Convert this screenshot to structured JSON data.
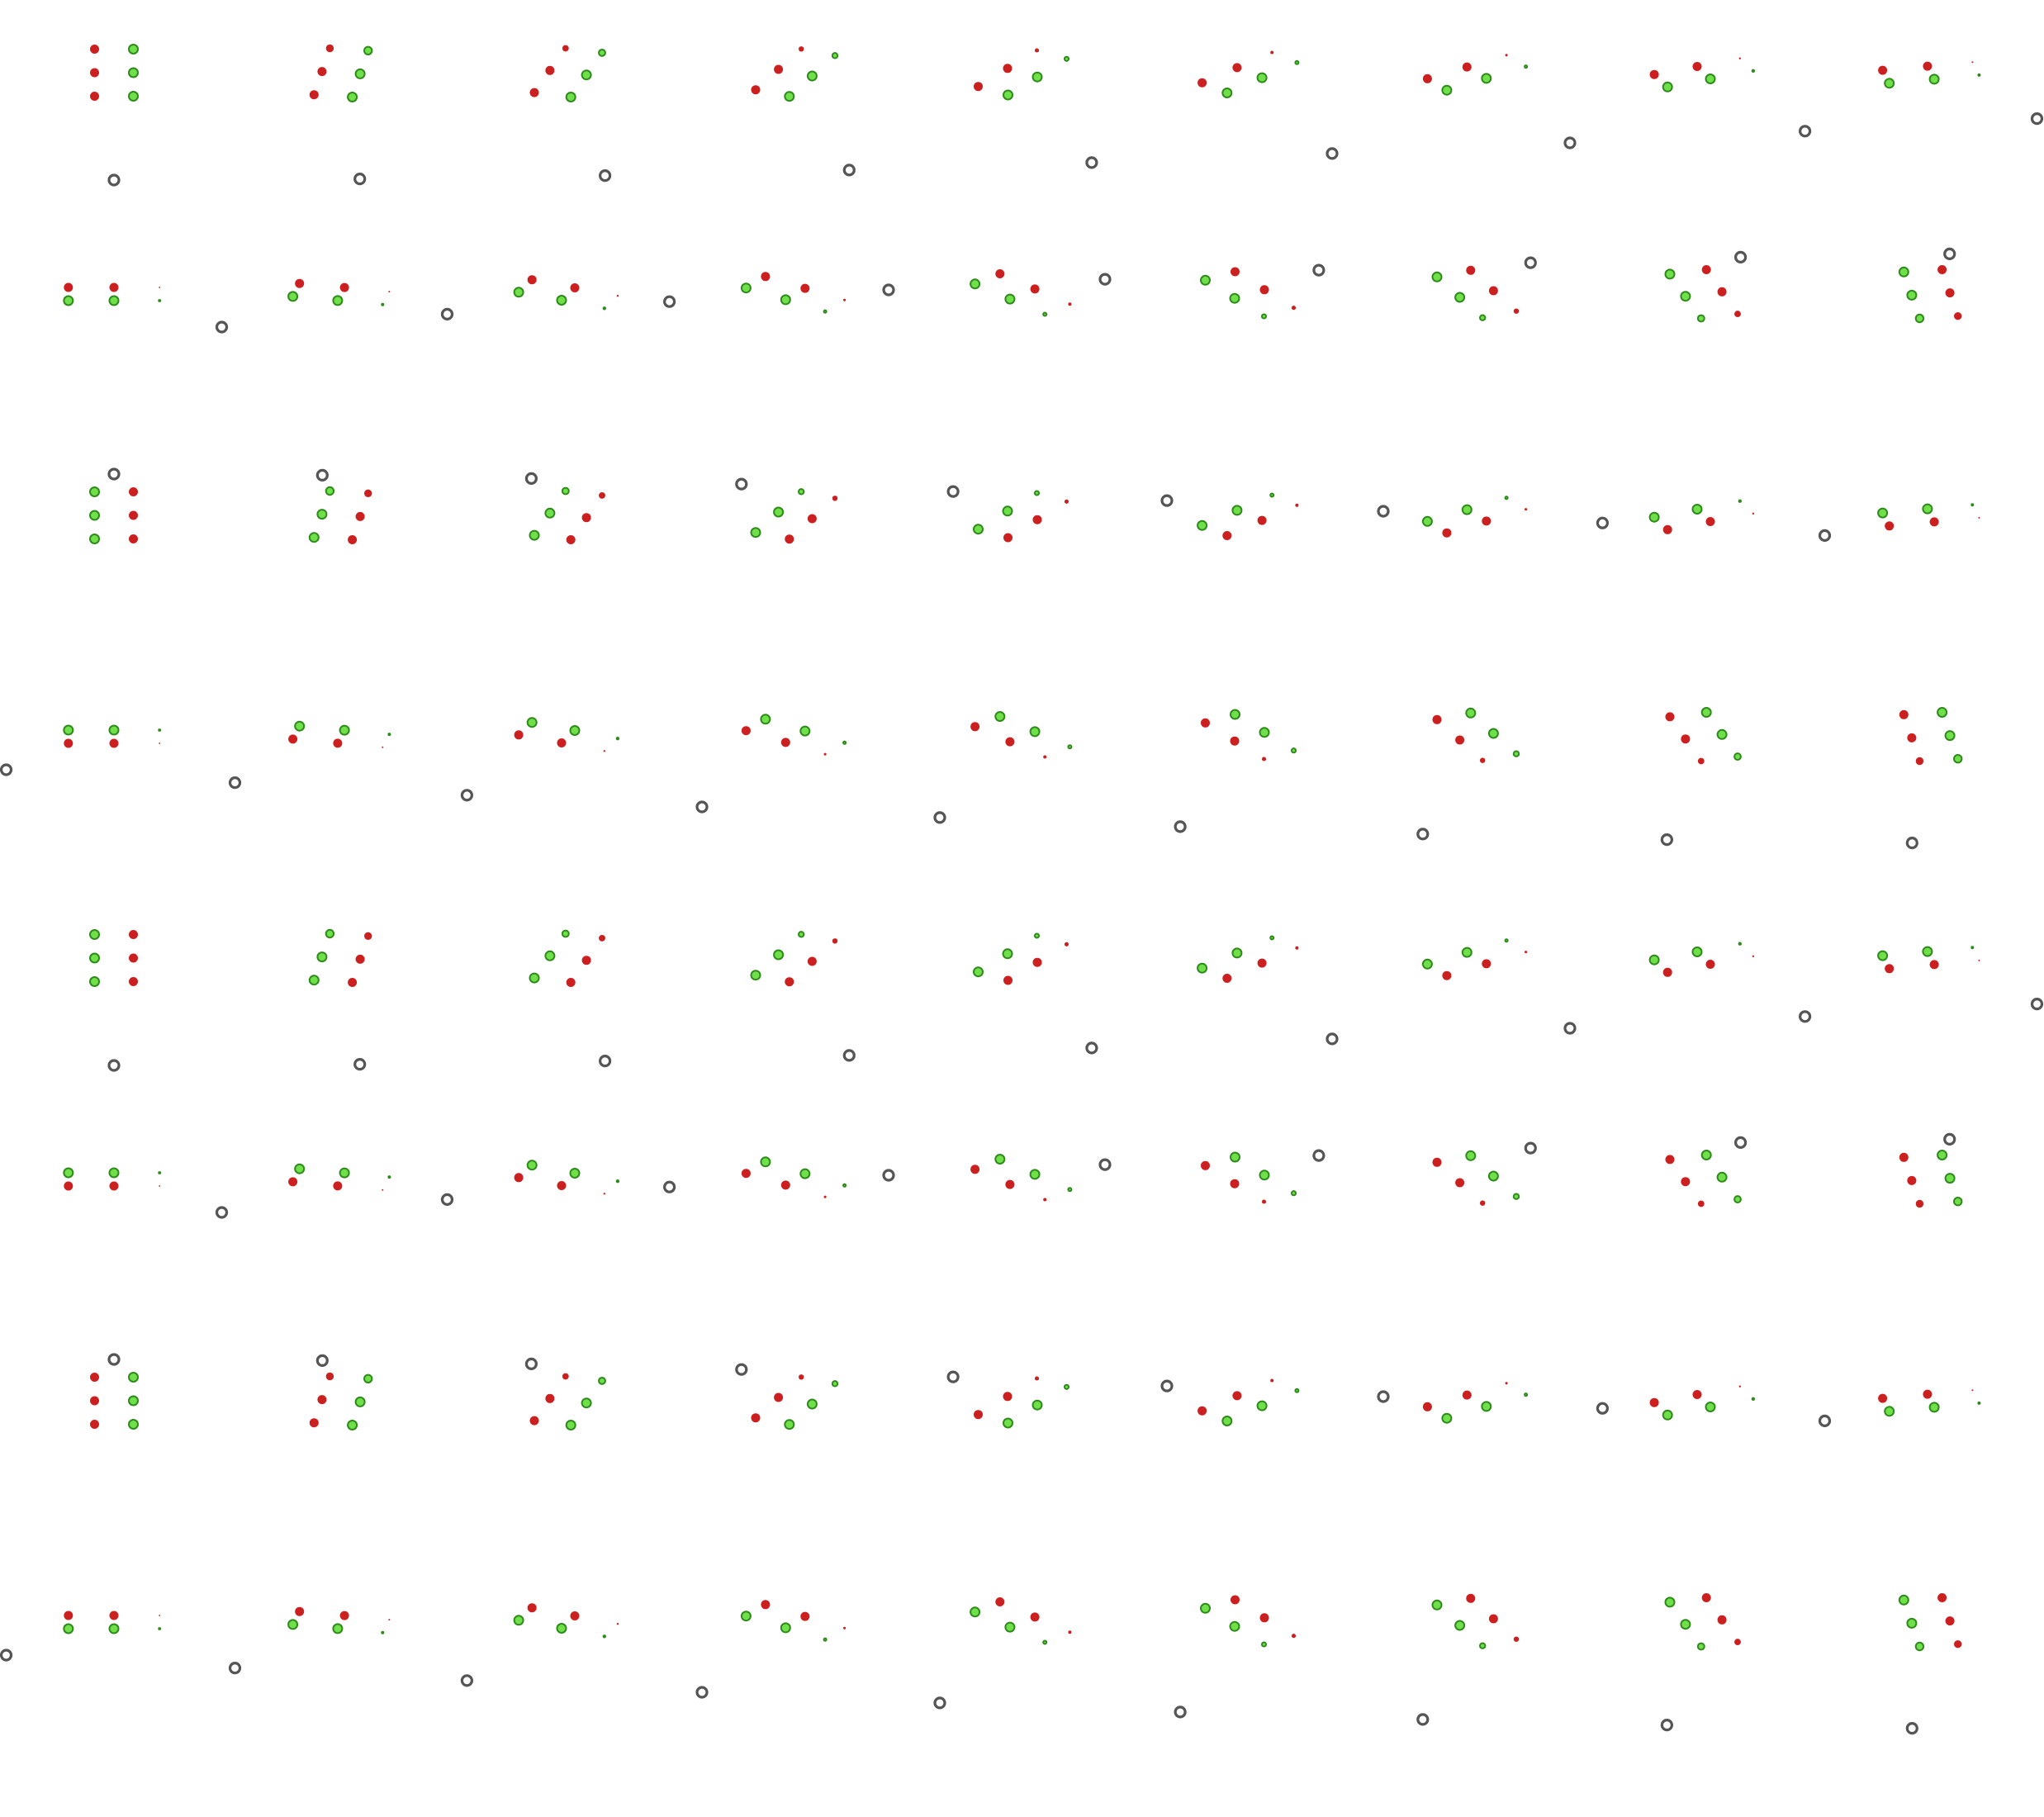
{
  "diagram": {
    "kind": "sprite-sheet",
    "rows": 8,
    "columns": 9,
    "colors": {
      "background": "#ffffff",
      "red_marker": "#cc1f1f",
      "green_marker_fill": "#6fe04a",
      "green_marker_stroke": "#2f8a1c",
      "reference_ring": "#555555"
    },
    "cell_legend": {
      "red_markers": 3,
      "green_markers": 3,
      "reference_rings": 1
    }
  }
}
